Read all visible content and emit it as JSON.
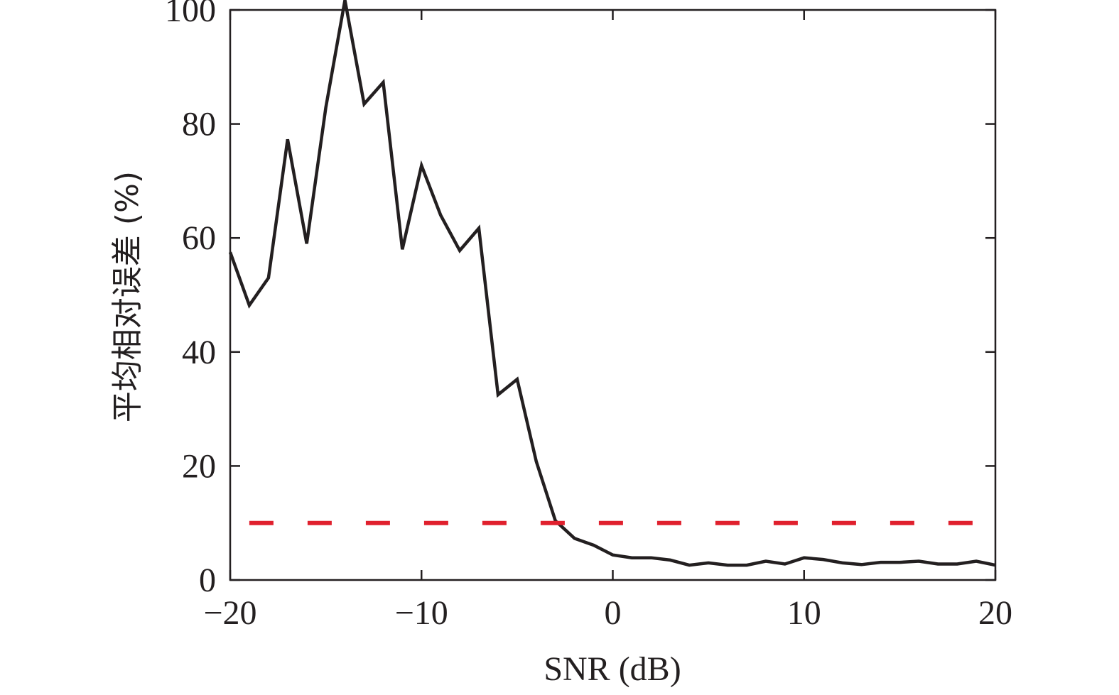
{
  "chart_data": {
    "type": "line",
    "title": "",
    "xlabel": "SNR (dB)",
    "ylabel": "平均相对误差 (%)",
    "xlim": [
      -20,
      20
    ],
    "ylim": [
      0,
      100
    ],
    "xticks": [
      -20,
      -10,
      0,
      10,
      20
    ],
    "xtick_labels": [
      "−20",
      "−10",
      "0",
      "10",
      "20"
    ],
    "yticks": [
      0,
      20,
      40,
      60,
      80,
      100
    ],
    "ytick_labels": [
      "0",
      "20",
      "40",
      "60",
      "80",
      "100"
    ],
    "grid": false,
    "series": [
      {
        "color": "#231f20",
        "style": "solid",
        "x": [
          -20,
          -19,
          -18,
          -17,
          -16,
          -15,
          -14,
          -13,
          -12,
          -11,
          -10,
          -9,
          -8,
          -7,
          -6,
          -5,
          -4,
          -3,
          -2,
          -1,
          0,
          1,
          2,
          3,
          4,
          5,
          6,
          7,
          8,
          9,
          10,
          11,
          12,
          13,
          14,
          15,
          16,
          17,
          18,
          19,
          20
        ],
        "y": [
          57.5,
          48.2,
          53.0,
          77.3,
          59.0,
          82.9,
          101.7,
          83.5,
          87.3,
          58.0,
          72.7,
          64.0,
          57.8,
          61.7,
          32.5,
          35.2,
          20.8,
          10.4,
          7.3,
          6.1,
          4.4,
          3.9,
          3.9,
          3.5,
          2.6,
          3.0,
          2.6,
          2.6,
          3.3,
          2.8,
          3.9,
          3.6,
          3.0,
          2.7,
          3.1,
          3.1,
          3.3,
          2.8,
          2.8,
          3.3,
          2.6
        ]
      },
      {
        "color": "#e0202d",
        "style": "dashed",
        "x": [
          -19,
          19
        ],
        "y": [
          10,
          10
        ]
      }
    ]
  }
}
